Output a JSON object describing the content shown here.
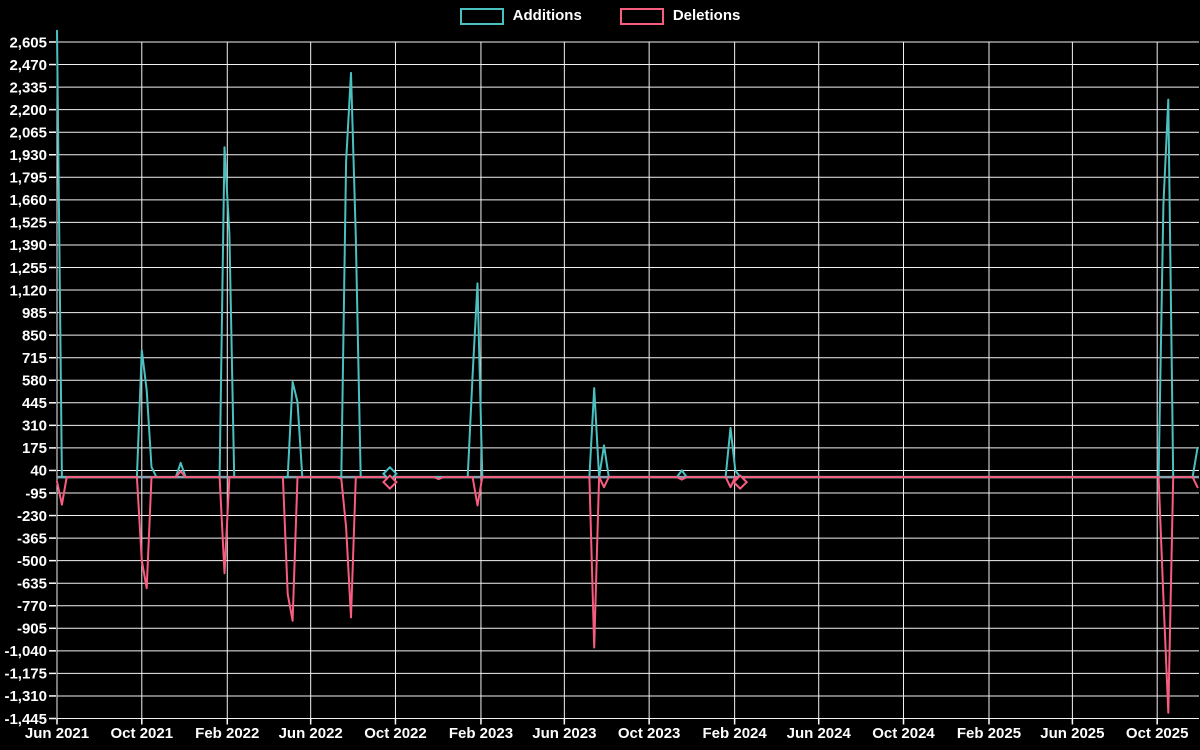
{
  "colors": {
    "background": "#000000",
    "grid_line": "#f2f2f2",
    "tick_text": "#ffffff",
    "zero_line": "#8ca0b0",
    "additions": "#4bc0c0",
    "deletions": "#f85c7f"
  },
  "chart_data": {
    "type": "line",
    "title": "",
    "legend_position": "top",
    "grid": true,
    "x_axis": {
      "start": "2021-06-01",
      "tick_every_months": 4,
      "tick_labels": [
        "Jun 2021",
        "Oct 2021",
        "Feb 2022",
        "Jun 2022",
        "Oct 2022",
        "Feb 2023",
        "Jun 2023",
        "Oct 2023",
        "Feb 2024",
        "Jun 2024",
        "Oct 2024",
        "Feb 2025",
        "Jun 2025",
        "Oct 2025"
      ]
    },
    "y_axis": {
      "min": -1445,
      "max": 2605,
      "step": 135,
      "ticks": [
        2605,
        2470,
        2335,
        2200,
        2065,
        1930,
        1795,
        1660,
        1525,
        1390,
        1255,
        1120,
        985,
        850,
        715,
        580,
        445,
        310,
        175,
        40,
        -95,
        -230,
        -365,
        -500,
        -635,
        -770,
        -905,
        -1040,
        -1175,
        -1310,
        -1445
      ]
    },
    "series": [
      {
        "name": "Additions",
        "color": "#4bc0c0",
        "points": [
          [
            "2021-06-01",
            2672
          ],
          [
            "2021-06-08",
            0
          ],
          [
            "2021-09-24",
            0
          ],
          [
            "2021-10-01",
            760
          ],
          [
            "2021-10-08",
            520
          ],
          [
            "2021-10-15",
            60
          ],
          [
            "2021-10-22",
            0
          ],
          [
            "2021-11-19",
            0
          ],
          [
            "2021-11-26",
            85
          ],
          [
            "2021-12-03",
            0
          ],
          [
            "2022-01-21",
            0
          ],
          [
            "2022-01-28",
            1975
          ],
          [
            "2022-02-04",
            1455
          ],
          [
            "2022-02-11",
            0
          ],
          [
            "2022-04-29",
            0
          ],
          [
            "2022-05-06",
            570
          ],
          [
            "2022-05-13",
            450
          ],
          [
            "2022-05-20",
            0
          ],
          [
            "2022-07-15",
            0
          ],
          [
            "2022-07-22",
            1890
          ],
          [
            "2022-07-29",
            2420
          ],
          [
            "2022-08-05",
            1440
          ],
          [
            "2022-08-12",
            0
          ],
          [
            "2022-09-16",
            0
          ],
          [
            "2022-09-23",
            20
          ],
          [
            "2022-09-30",
            0
          ],
          [
            "2023-01-13",
            0
          ],
          [
            "2023-01-20",
            610
          ],
          [
            "2023-01-27",
            1160
          ],
          [
            "2023-02-03",
            0
          ],
          [
            "2023-07-07",
            0
          ],
          [
            "2023-07-14",
            533
          ],
          [
            "2023-07-21",
            0
          ],
          [
            "2023-07-28",
            190
          ],
          [
            "2023-08-04",
            0
          ],
          [
            "2023-11-10",
            0
          ],
          [
            "2023-11-17",
            40
          ],
          [
            "2023-11-24",
            0
          ],
          [
            "2024-01-19",
            0
          ],
          [
            "2024-01-26",
            295
          ],
          [
            "2024-02-02",
            40
          ],
          [
            "2024-02-09",
            0
          ],
          [
            "2025-10-03",
            0
          ],
          [
            "2025-10-10",
            1630
          ],
          [
            "2025-10-17",
            2260
          ],
          [
            "2025-10-24",
            0
          ],
          [
            "2025-11-21",
            0
          ],
          [
            "2025-11-28",
            175
          ]
        ]
      },
      {
        "name": "Deletions",
        "color": "#f85c7f",
        "points": [
          [
            "2021-06-01",
            -25
          ],
          [
            "2021-06-08",
            -165
          ],
          [
            "2021-06-15",
            0
          ],
          [
            "2021-09-24",
            0
          ],
          [
            "2021-10-01",
            -500
          ],
          [
            "2021-10-08",
            -665
          ],
          [
            "2021-10-15",
            0
          ],
          [
            "2021-11-19",
            0
          ],
          [
            "2021-11-26",
            35
          ],
          [
            "2021-12-03",
            0
          ],
          [
            "2022-01-21",
            0
          ],
          [
            "2022-01-28",
            -575
          ],
          [
            "2022-02-04",
            0
          ],
          [
            "2022-04-22",
            0
          ],
          [
            "2022-04-29",
            -700
          ],
          [
            "2022-05-06",
            -860
          ],
          [
            "2022-05-13",
            0
          ],
          [
            "2022-07-08",
            0
          ],
          [
            "2022-07-15",
            -10
          ],
          [
            "2022-07-22",
            -300
          ],
          [
            "2022-07-29",
            -840
          ],
          [
            "2022-08-05",
            0
          ],
          [
            "2022-09-16",
            0
          ],
          [
            "2022-09-23",
            -30
          ],
          [
            "2022-09-30",
            0
          ],
          [
            "2022-11-25",
            0
          ],
          [
            "2022-12-02",
            -12
          ],
          [
            "2022-12-09",
            0
          ],
          [
            "2023-01-20",
            0
          ],
          [
            "2023-01-27",
            -170
          ],
          [
            "2023-02-03",
            0
          ],
          [
            "2023-07-07",
            0
          ],
          [
            "2023-07-14",
            -1020
          ],
          [
            "2023-07-21",
            0
          ],
          [
            "2023-07-28",
            -60
          ],
          [
            "2023-08-04",
            0
          ],
          [
            "2023-11-10",
            0
          ],
          [
            "2023-11-17",
            -15
          ],
          [
            "2023-11-24",
            0
          ],
          [
            "2024-01-19",
            0
          ],
          [
            "2024-01-26",
            -60
          ],
          [
            "2024-02-02",
            0
          ],
          [
            "2024-02-09",
            -30
          ],
          [
            "2024-02-16",
            0
          ],
          [
            "2025-10-03",
            0
          ],
          [
            "2025-10-10",
            -720
          ],
          [
            "2025-10-17",
            -1410
          ],
          [
            "2025-10-24",
            0
          ],
          [
            "2025-11-21",
            0
          ],
          [
            "2025-11-28",
            -60
          ]
        ]
      }
    ],
    "markers": [
      {
        "series": 0,
        "date": "2022-09-23",
        "value": 20,
        "shape": "diamond"
      },
      {
        "series": 1,
        "date": "2022-09-23",
        "value": -30,
        "shape": "diamond"
      },
      {
        "series": 1,
        "date": "2024-02-09",
        "value": -30,
        "shape": "diamond"
      }
    ]
  }
}
